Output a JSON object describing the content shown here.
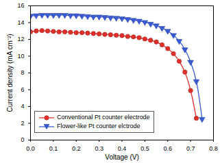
{
  "chart_data": {
    "type": "line",
    "x_label": "Voltage (V)",
    "y_label": "Current density (mA cm⁻²)",
    "x": [
      0,
      0.025,
      0.05,
      0.075,
      0.1,
      0.125,
      0.15,
      0.175,
      0.2,
      0.225,
      0.25,
      0.275,
      0.3,
      0.325,
      0.35,
      0.375,
      0.4,
      0.425,
      0.45,
      0.475,
      0.5,
      0.525,
      0.55,
      0.575,
      0.6,
      0.625,
      0.65,
      0.675,
      0.7,
      0.725,
      0.75
    ],
    "series": [
      {
        "name": "Conventional Pt counter electrode",
        "color": "#e0302a",
        "marker": "circle",
        "values": [
          12.9,
          13.0,
          13.05,
          13.0,
          12.95,
          12.9,
          12.9,
          12.85,
          12.8,
          12.8,
          12.75,
          12.7,
          12.65,
          12.6,
          12.55,
          12.5,
          12.45,
          12.35,
          12.3,
          12.2,
          12.05,
          11.9,
          11.7,
          11.35,
          10.9,
          10.3,
          9.4,
          8.1,
          5.9,
          2.6,
          null
        ]
      },
      {
        "name": "Flower-like Pt counter elctrode",
        "color": "#3b5bd6",
        "marker": "triangle-down",
        "values": [
          14.8,
          14.85,
          14.9,
          14.9,
          14.9,
          14.9,
          14.9,
          14.85,
          14.85,
          14.8,
          14.75,
          14.7,
          14.7,
          14.65,
          14.6,
          14.55,
          14.5,
          14.4,
          14.3,
          14.2,
          14.05,
          13.85,
          13.65,
          13.35,
          13.0,
          12.5,
          11.8,
          10.8,
          9.3,
          7.0,
          2.5
        ]
      }
    ],
    "xlim": [
      0,
      0.8
    ],
    "xticks": [
      {
        "value": 0,
        "label": "0.0"
      },
      0.1,
      0.2,
      0.3,
      0.4,
      0.5,
      0.6,
      0.7,
      0.8
    ],
    "ylim": [
      0,
      16
    ],
    "yticks": [
      0,
      2,
      4,
      6,
      8,
      10,
      12,
      14,
      16
    ],
    "grid": false,
    "legend": "lower left"
  }
}
